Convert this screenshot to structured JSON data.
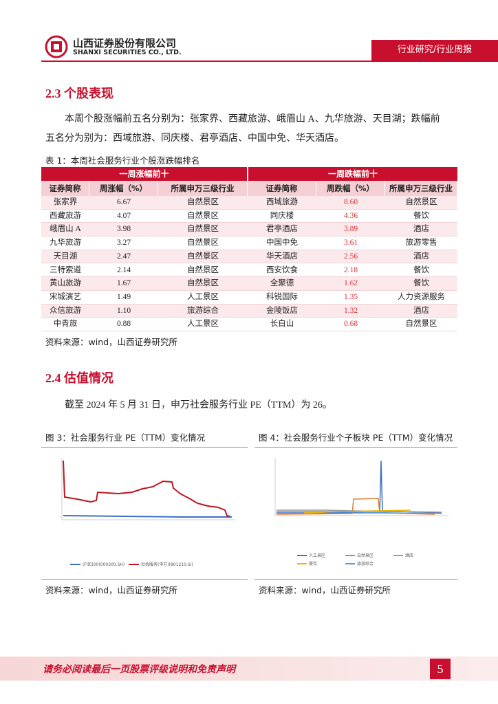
{
  "header": {
    "company": "山西证券股份有限公司",
    "company_en": "SHANXI SECURITIES CO., LTD.",
    "tag": "行业研究/行业周报"
  },
  "section_23": {
    "title": "2.3  个股表现",
    "paragraph": [
      "本周个股涨幅前五名分别为：张家界、西藏旅游、峨眉山 A、九华旅游、天目湖；跌幅前",
      "五名分为别为：西域旅游、同庆楼、君亭酒店、中国中免、华天酒店。"
    ]
  },
  "table": {
    "caption": "表 1：本周社会服务行业个股涨跌幅排名",
    "groups": [
      "一周涨幅前十",
      "一周跌幅前十"
    ],
    "columns": [
      "证券简称",
      "周涨幅（%）",
      "所属申万三级行业",
      "证券简称",
      "周跌幅（%）",
      "所属申万三级行业"
    ],
    "rows": [
      [
        "张家界",
        "6.67",
        "自然景区",
        "西域旅游",
        "8.60",
        "自然景区"
      ],
      [
        "西藏旅游",
        "4.07",
        "自然景区",
        "同庆楼",
        "4.36",
        "餐饮"
      ],
      [
        "峨眉山 A",
        "3.98",
        "自然景区",
        "君亭酒店",
        "3.89",
        "酒店"
      ],
      [
        "九华旅游",
        "3.27",
        "自然景区",
        "中国中免",
        "3.61",
        "旅游零售"
      ],
      [
        "天目湖",
        "2.47",
        "自然景区",
        "华天酒店",
        "2.56",
        "酒店"
      ],
      [
        "三特索道",
        "2.14",
        "自然景区",
        "西安饮食",
        "2.18",
        "餐饮"
      ],
      [
        "黄山旅游",
        "1.67",
        "自然景区",
        "全聚德",
        "1.62",
        "餐饮"
      ],
      [
        "宋城演艺",
        "1.49",
        "人工景区",
        "科锐国际",
        "1.35",
        "人力资源服务"
      ],
      [
        "众信旅游",
        "1.10",
        "旅游综合",
        "金陵饭店",
        "1.32",
        "酒店"
      ],
      [
        "中青旅",
        "0.88",
        "人工景区",
        "长白山",
        "0.68",
        "自然景区"
      ]
    ],
    "source": "资料来源：wind，山西证券研究所"
  },
  "section_24": {
    "title": "2.4  估值情况",
    "paragraph": "截至 2024 年 5 月 31 日，申万社会服务行业 PE（TTM）为 26。"
  },
  "figures": [
    {
      "caption": "图 3：社会服务行业 PE（TTM）变化情况",
      "legend": [
        "沪深300(000300.SH)",
        "社会服务(申万)(801210.SI)"
      ],
      "source": "资料来源：wind，山西证券研究所"
    },
    {
      "caption": "图 4：社会服务行业个子板块 PE（TTM）变化情况",
      "legend": [
        "人工景区",
        "自然景区",
        "酒店",
        "餐饮",
        "旅游综合"
      ],
      "source": "资料来源：wind，山西证券研究所"
    }
  ],
  "footer": {
    "disclaimer": "请务必阅读最后一页股票评级说明和免责声明",
    "page": "5"
  }
}
